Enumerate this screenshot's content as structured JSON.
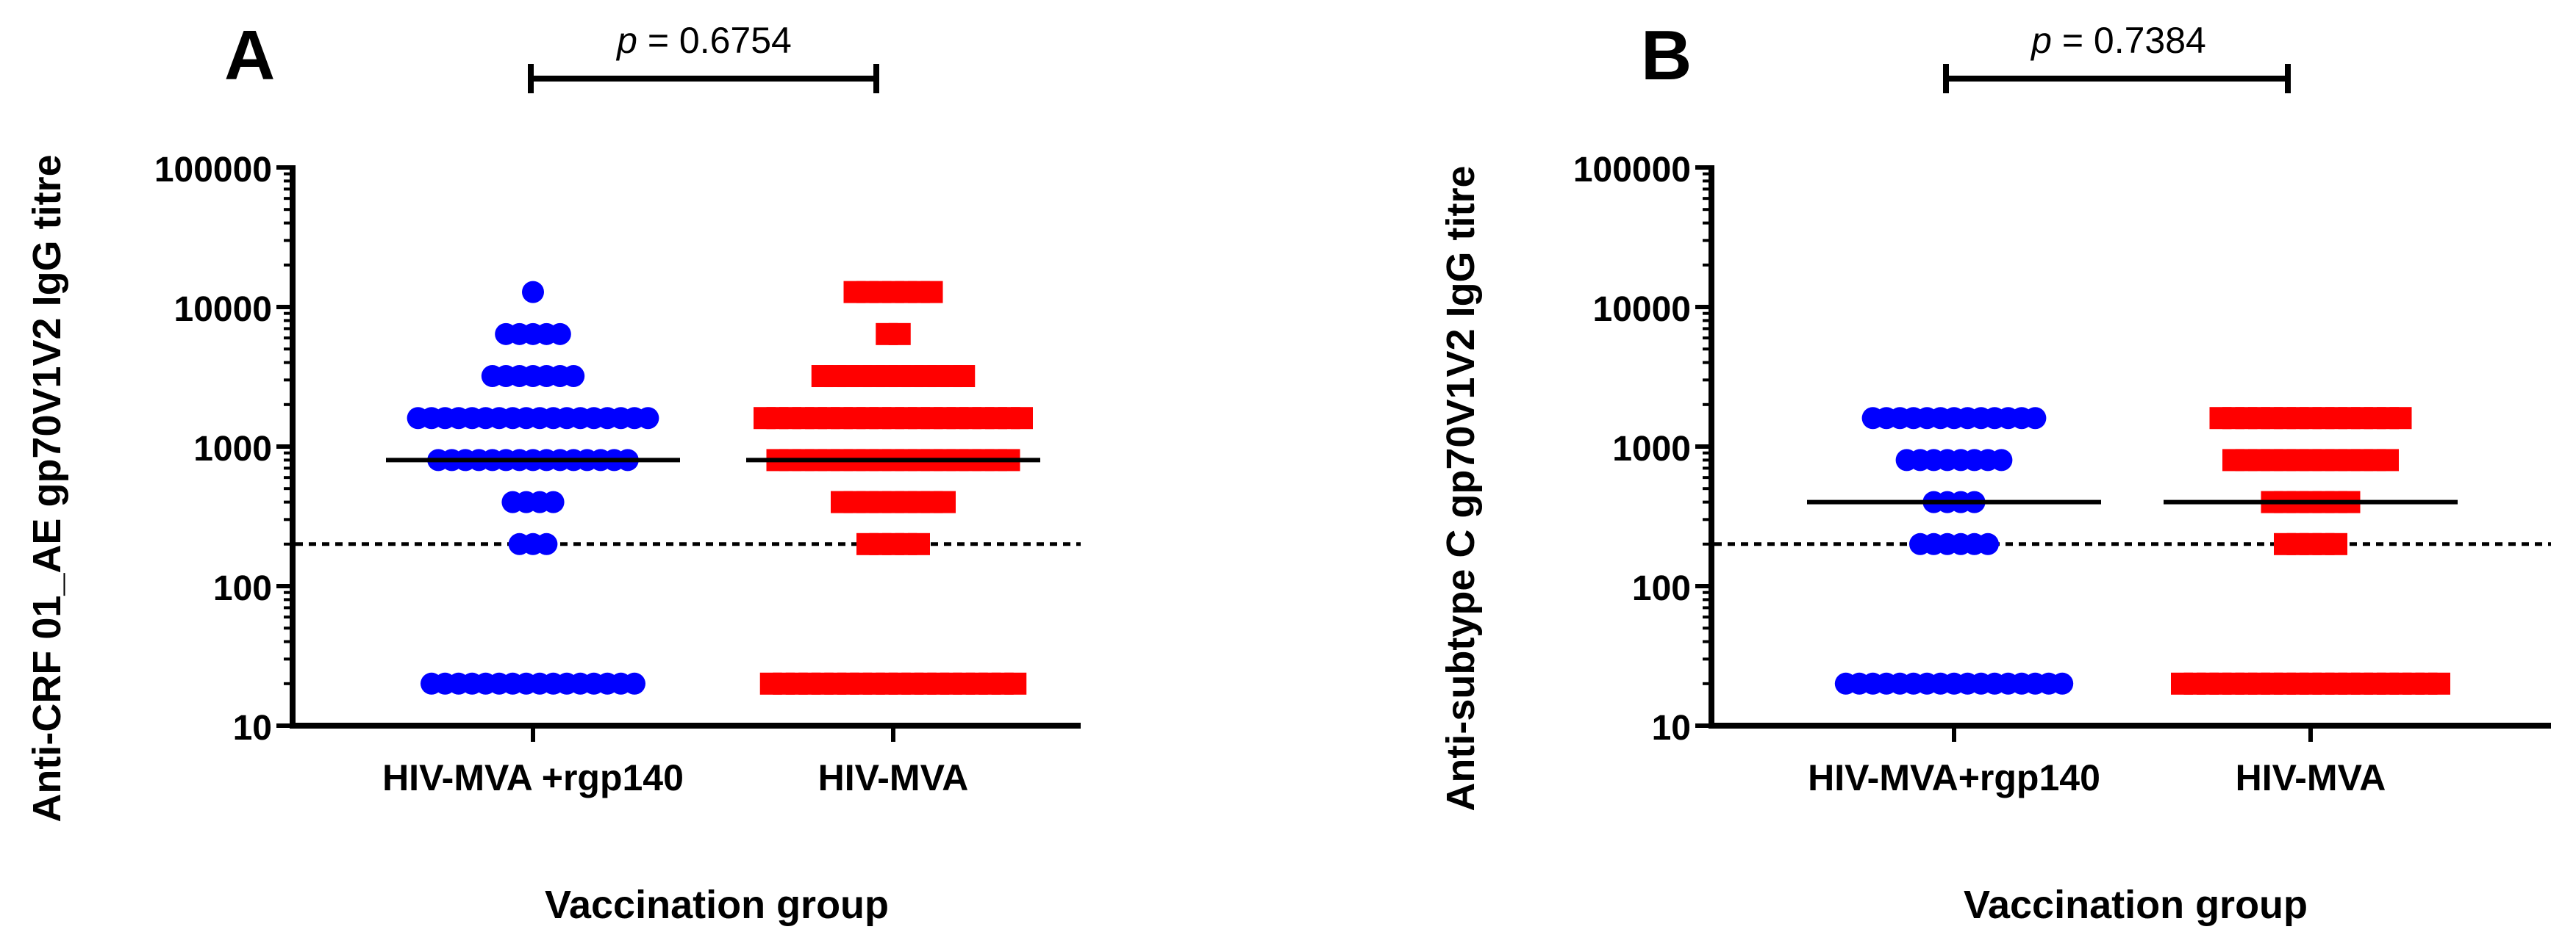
{
  "chart_data": [
    {
      "panel": "A",
      "type": "scatter",
      "yscale": "log",
      "ylim": [
        10,
        100000
      ],
      "yticks": [
        10,
        100,
        1000,
        10000,
        100000
      ],
      "yticklabels": [
        "10",
        "100",
        "1000",
        "10000",
        "100000"
      ],
      "ylabel": "Anti-CRF 01_AE gp70V1V2 IgG titre",
      "xlabel": "Vaccination group",
      "categories": [
        "HIV-MVA +rgp140",
        "HIV-MVA"
      ],
      "threshold": 200,
      "pvalue": {
        "prefix": "p",
        "text": " = 0.6754"
      },
      "series": [
        {
          "name": "HIV-MVA +rgp140",
          "marker": "circle",
          "color": "#0000ff",
          "median": 800,
          "values": [
            {
              "y": 12800,
              "n": 1
            },
            {
              "y": 6400,
              "n": 5
            },
            {
              "y": 3200,
              "n": 7
            },
            {
              "y": 1600,
              "n": 18
            },
            {
              "y": 800,
              "n": 15
            },
            {
              "y": 400,
              "n": 4
            },
            {
              "y": 200,
              "n": 3
            },
            {
              "y": 20,
              "n": 16
            }
          ]
        },
        {
          "name": "HIV-MVA",
          "marker": "square",
          "color": "#ff0000",
          "median": 800,
          "values": [
            {
              "y": 12800,
              "n": 7
            },
            {
              "y": 6400,
              "n": 2
            },
            {
              "y": 3200,
              "n": 12
            },
            {
              "y": 1600,
              "n": 21
            },
            {
              "y": 800,
              "n": 19
            },
            {
              "y": 400,
              "n": 9
            },
            {
              "y": 200,
              "n": 5
            },
            {
              "y": 20,
              "n": 20
            }
          ]
        }
      ]
    },
    {
      "panel": "B",
      "type": "scatter",
      "yscale": "log",
      "ylim": [
        10,
        100000
      ],
      "yticks": [
        10,
        100,
        1000,
        10000,
        100000
      ],
      "yticklabels": [
        "10",
        "100",
        "1000",
        "10000",
        "100000"
      ],
      "ylabel": "Anti-subtype C gp70V1V2  IgG titre",
      "xlabel": "Vaccination group",
      "categories": [
        "HIV-MVA+rgp140",
        "HIV-MVA"
      ],
      "threshold": 200,
      "pvalue": {
        "prefix": "p",
        "text": " = 0.7384"
      },
      "series": [
        {
          "name": "HIV-MVA+rgp140",
          "marker": "circle",
          "color": "#0000ff",
          "median": 400,
          "values": [
            {
              "y": 1600,
              "n": 13
            },
            {
              "y": 800,
              "n": 8
            },
            {
              "y": 400,
              "n": 4
            },
            {
              "y": 200,
              "n": 6
            },
            {
              "y": 20,
              "n": 17
            }
          ]
        },
        {
          "name": "HIV-MVA",
          "marker": "square",
          "color": "#ff0000",
          "median": 400,
          "values": [
            {
              "y": 1600,
              "n": 15
            },
            {
              "y": 800,
              "n": 13
            },
            {
              "y": 400,
              "n": 7
            },
            {
              "y": 200,
              "n": 5
            },
            {
              "y": 20,
              "n": 21
            }
          ]
        }
      ]
    }
  ]
}
